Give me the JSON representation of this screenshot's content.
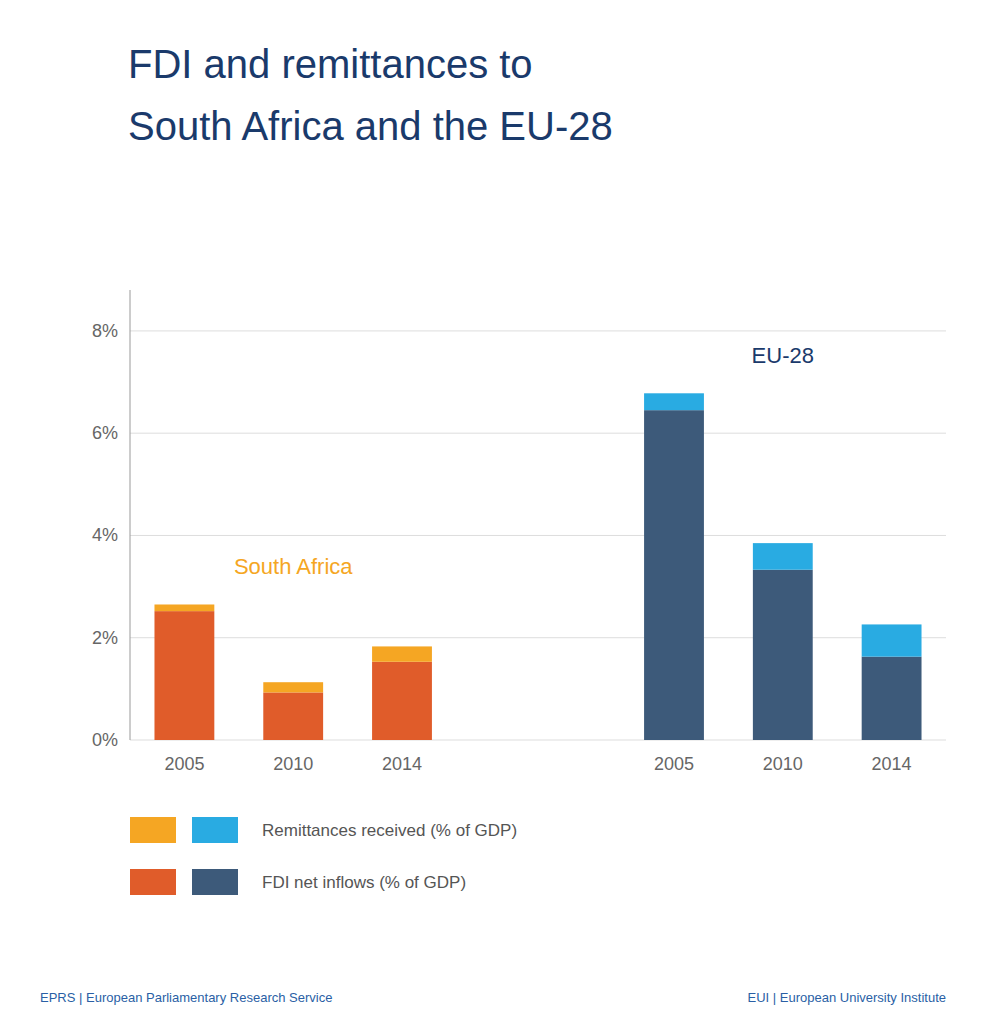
{
  "chart_data": {
    "type": "bar",
    "stacked": true,
    "title": "FDI and remittances to",
    "subtitle": "South Africa and the EU-28",
    "categories": [
      "2005",
      "2010",
      "2014",
      "2005",
      "2010",
      "2014"
    ],
    "series": [
      {
        "name": "FDI net inflows (% of GDP)",
        "values": [
          2.52,
          0.93,
          1.53,
          6.45,
          3.33,
          1.63
        ],
        "colors": [
          "#e05c2a",
          "#e05c2a",
          "#e05c2a",
          "#3d5a7a",
          "#3d5a7a",
          "#3d5a7a"
        ]
      },
      {
        "name": "Remittances received (% of GDP)",
        "values": [
          0.13,
          0.2,
          0.3,
          0.33,
          0.52,
          0.63
        ],
        "colors": [
          "#f5a623",
          "#f5a623",
          "#f5a623",
          "#29abe2",
          "#29abe2",
          "#29abe2"
        ]
      }
    ],
    "ylim": [
      0,
      8.8
    ],
    "yticks": [
      {
        "value": 0,
        "label": "0%"
      },
      {
        "value": 2,
        "label": "2%"
      },
      {
        "value": 4,
        "label": "4%"
      },
      {
        "value": 6,
        "label": "6%"
      },
      {
        "value": 8,
        "label": "8%"
      }
    ],
    "grid": true,
    "legend": "bottom-left",
    "annotations": [
      {
        "text": "South Africa",
        "color": "#f5a623"
      },
      {
        "text": "EU-28",
        "color": "#1a3a6b"
      },
      {
        "text": "EPRS | European Parliamentary Research Service",
        "color": "#2a5fa5"
      },
      {
        "text": "EUI | European University Institute",
        "color": "#2a5fa5"
      }
    ]
  }
}
